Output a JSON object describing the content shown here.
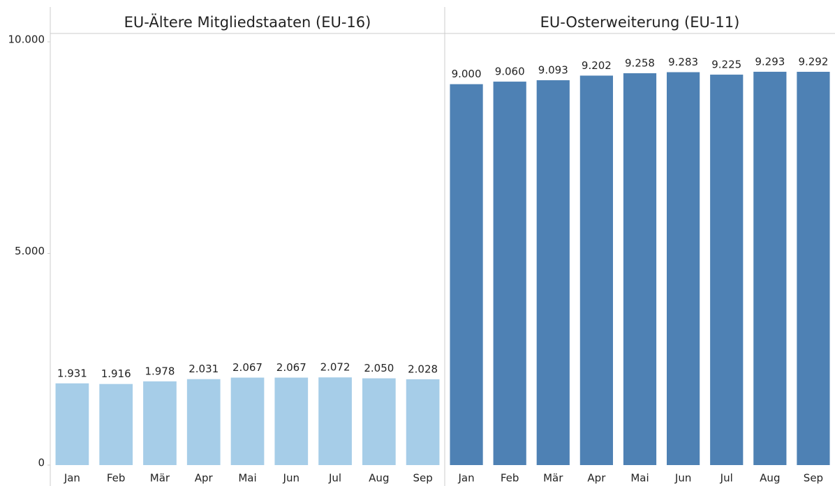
{
  "chart_data": [
    {
      "type": "bar",
      "title": "EU-Ältere Mitgliedstaaten (EU-16)",
      "categories": [
        "Jan",
        "Feb",
        "Mär",
        "Apr",
        "Mai",
        "Jun",
        "Jul",
        "Aug",
        "Sep"
      ],
      "values": [
        1931,
        1916,
        1978,
        2031,
        2067,
        2067,
        2072,
        2050,
        2028
      ],
      "value_labels": [
        "1.931",
        "1.916",
        "1.978",
        "2.031",
        "2.067",
        "2.067",
        "2.072",
        "2.050",
        "2.028"
      ],
      "color": "#a6cde8",
      "ylim": [
        0,
        10000
      ],
      "yticks": [
        0,
        {
          "value": 5000,
          "label": "5.000"
        },
        {
          "value": 10000,
          "label": "10.000"
        }
      ]
    },
    {
      "type": "bar",
      "title": "EU-Osterweiterung (EU-11)",
      "categories": [
        "Jan",
        "Feb",
        "Mär",
        "Apr",
        "Mai",
        "Jun",
        "Jul",
        "Aug",
        "Sep"
      ],
      "values": [
        9000,
        9060,
        9093,
        9202,
        9258,
        9283,
        9225,
        9293,
        9292
      ],
      "value_labels": [
        "9.000",
        "9.060",
        "9.093",
        "9.202",
        "9.258",
        "9.283",
        "9.225",
        "9.293",
        "9.292"
      ],
      "color": "#4e81b4",
      "ylim": [
        0,
        10000
      ]
    }
  ]
}
